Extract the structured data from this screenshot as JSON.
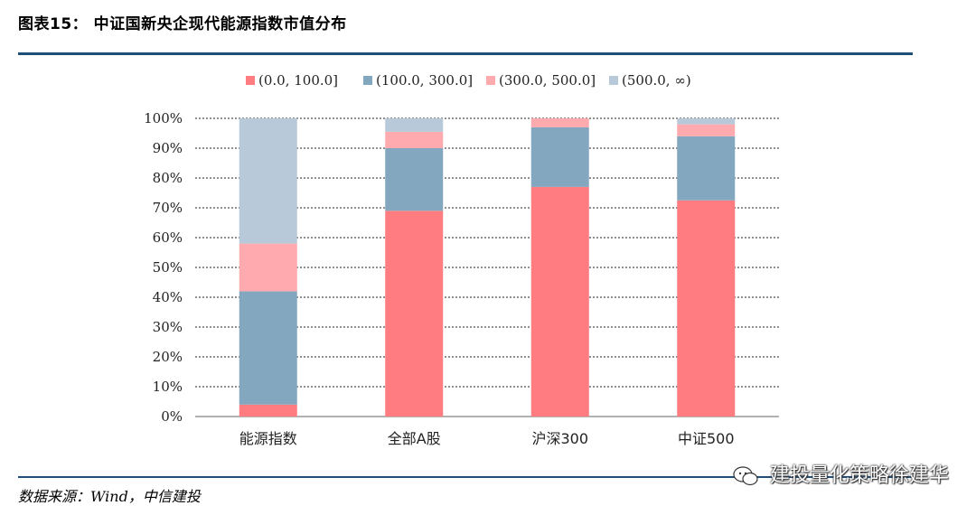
{
  "header": {
    "title": "图表15：  中证国新央企现代能源指数市值分布"
  },
  "footer": {
    "source": "数据来源：Wind，中信建投",
    "watermark": "建投量化策略徐建华"
  },
  "colors": {
    "rule": "#1f4e79",
    "s1": "#ff7c80",
    "s2": "#84a7c0",
    "s3": "#ffaaae",
    "s4": "#b8cad9",
    "grid": "#222222"
  },
  "chart_data": {
    "type": "bar",
    "stacked": true,
    "percent": true,
    "categories": [
      "能源指数",
      "全部A股",
      "沪深300",
      "中证500"
    ],
    "series": [
      {
        "name": "(0.0, 100.0]",
        "values": [
          4,
          69,
          77,
          72.5
        ]
      },
      {
        "name": "(100.0, 300.0]",
        "values": [
          38,
          21,
          20,
          21.5
        ]
      },
      {
        "name": "(300.0, 500.0]",
        "values": [
          16,
          5.5,
          3,
          4
        ]
      },
      {
        "name": "(500.0, ∞)",
        "values": [
          42,
          4.5,
          0,
          2
        ]
      }
    ],
    "yticks": [
      "0%",
      "10%",
      "20%",
      "30%",
      "40%",
      "50%",
      "60%",
      "70%",
      "80%",
      "90%",
      "100%"
    ],
    "ylim": [
      0,
      100
    ],
    "grid": true,
    "legend_position": "top"
  }
}
